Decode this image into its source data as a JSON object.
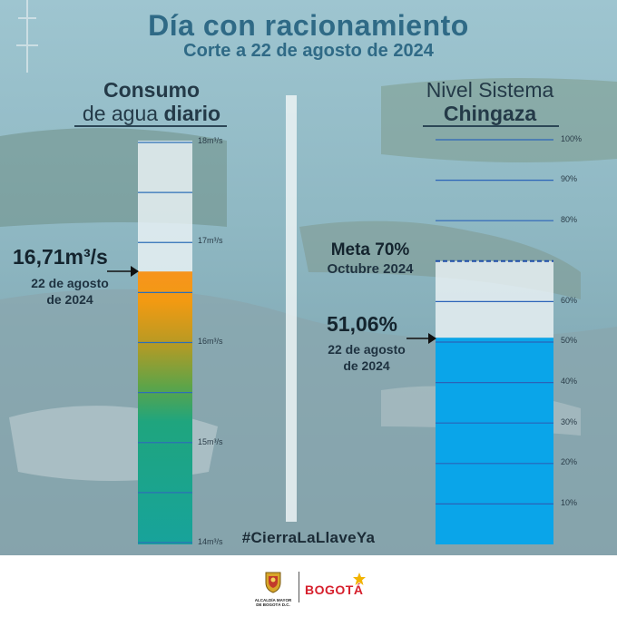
{
  "header": {
    "title": "Día con racionamiento",
    "subtitle": "Corte a 22 de agosto de 2024"
  },
  "consumption_panel": {
    "heading_line1": "Consumo",
    "heading_line2_prefix": "de agua ",
    "heading_line2_bold": "diario",
    "value": "16,71m³/s",
    "date_line1": "22 de agosto",
    "date_line2": "de 2024",
    "ticks": [
      "18m³/s",
      "17m³/s",
      "16m³/s",
      "15m³/s",
      "14m³/s"
    ],
    "current_value_m3s": 16.71,
    "scale_min_m3s": 14,
    "scale_max_m3s": 18
  },
  "chingaza_panel": {
    "heading_line1": "Nivel Sistema",
    "heading_line2": "Chingaza",
    "goal_line1": "Meta 70%",
    "goal_line2": "Octubre 2024",
    "value": "51,06%",
    "date_line1": "22 de agosto",
    "date_line2": "de 2024",
    "ticks": [
      "100%",
      "90%",
      "80%",
      "60%",
      "50%",
      "40%",
      "30%",
      "20%",
      "10%"
    ],
    "current_percent": 51.06,
    "goal_percent": 70
  },
  "hashtag": "#CierraLaLlaveYa",
  "footer": {
    "alcaldia_line1": "ALCALDÍA MAYOR",
    "alcaldia_line2": "DE BOGOTÁ D.C.",
    "brand": "BOGOTÁ"
  },
  "colors": {
    "title": "#2f6a86",
    "water_blue": "#0aa5e9",
    "orange": "#f39a16",
    "teal": "#1aa994",
    "goal_line": "#1f4fa8"
  }
}
